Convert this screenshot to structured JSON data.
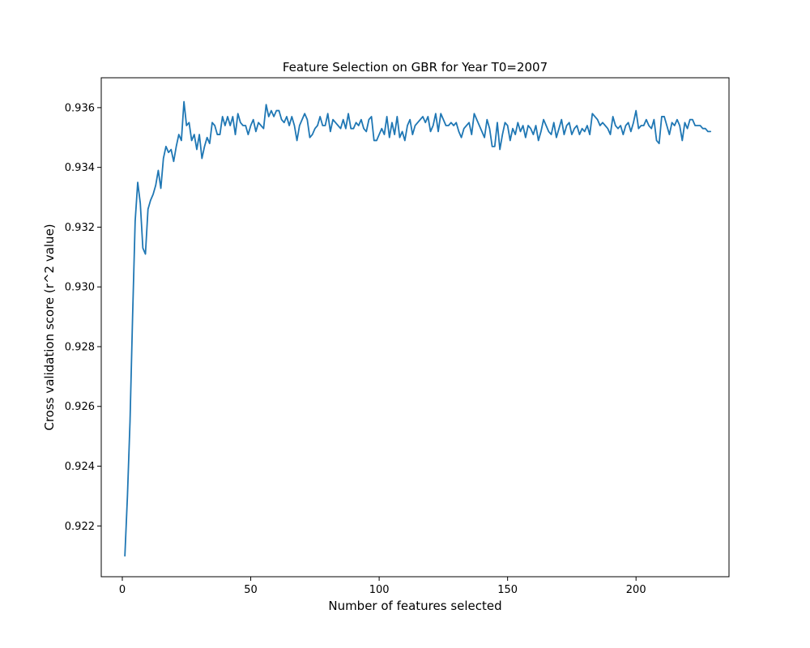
{
  "chart_data": {
    "type": "line",
    "title": "Feature Selection on GBR for Year T0=2007",
    "xlabel": "Number of features selected",
    "ylabel": "Cross validation score (r^2 value)",
    "xlim": [
      -8.2,
      236.2
    ],
    "ylim": [
      0.9203,
      0.937
    ],
    "grid": false,
    "xticks": [
      0,
      50,
      100,
      150,
      200
    ],
    "xtick_labels": [
      "0",
      "50",
      "100",
      "150",
      "200"
    ],
    "yticks": [
      0.922,
      0.924,
      0.926,
      0.928,
      0.93,
      0.932,
      0.934,
      0.936
    ],
    "ytick_labels": [
      "0.922",
      "0.924",
      "0.926",
      "0.928",
      "0.930",
      "0.932",
      "0.934",
      "0.936"
    ],
    "line_color": "#1f77b4",
    "series": [
      {
        "x_start": 1,
        "x_step": 1,
        "values": [
          0.921,
          0.923,
          0.9255,
          0.929,
          0.9322,
          0.9335,
          0.9328,
          0.9313,
          0.9311,
          0.9326,
          0.9329,
          0.9331,
          0.9334,
          0.9339,
          0.9333,
          0.9343,
          0.9347,
          0.9345,
          0.9346,
          0.9342,
          0.9347,
          0.9351,
          0.9349,
          0.9362,
          0.9354,
          0.9355,
          0.9349,
          0.9351,
          0.9346,
          0.9351,
          0.9343,
          0.9347,
          0.935,
          0.9348,
          0.9355,
          0.9354,
          0.9351,
          0.9351,
          0.9357,
          0.9354,
          0.9357,
          0.9354,
          0.9357,
          0.9351,
          0.9358,
          0.9355,
          0.9354,
          0.9354,
          0.9351,
          0.9354,
          0.9356,
          0.9352,
          0.9355,
          0.9354,
          0.9353,
          0.9361,
          0.9357,
          0.9359,
          0.9357,
          0.9359,
          0.9359,
          0.9356,
          0.9355,
          0.9357,
          0.9354,
          0.9357,
          0.9354,
          0.9349,
          0.9354,
          0.9356,
          0.9358,
          0.9356,
          0.935,
          0.9351,
          0.9353,
          0.9354,
          0.9357,
          0.9354,
          0.9354,
          0.9358,
          0.9352,
          0.9356,
          0.9355,
          0.9354,
          0.9353,
          0.9356,
          0.9353,
          0.9358,
          0.9353,
          0.9353,
          0.9355,
          0.9354,
          0.9356,
          0.9353,
          0.9352,
          0.9356,
          0.9357,
          0.9349,
          0.9349,
          0.9351,
          0.9353,
          0.9351,
          0.9357,
          0.935,
          0.9355,
          0.9351,
          0.9357,
          0.935,
          0.9352,
          0.9349,
          0.9354,
          0.9356,
          0.9351,
          0.9354,
          0.9355,
          0.9356,
          0.9357,
          0.9355,
          0.9357,
          0.9352,
          0.9354,
          0.9358,
          0.9352,
          0.9358,
          0.9356,
          0.9354,
          0.9354,
          0.9355,
          0.9354,
          0.9355,
          0.9352,
          0.935,
          0.9353,
          0.9354,
          0.9355,
          0.9351,
          0.9358,
          0.9356,
          0.9354,
          0.9352,
          0.935,
          0.9356,
          0.9353,
          0.9347,
          0.9347,
          0.9355,
          0.9346,
          0.9351,
          0.9355,
          0.9354,
          0.9349,
          0.9353,
          0.9351,
          0.9355,
          0.9352,
          0.9354,
          0.935,
          0.9354,
          0.9353,
          0.9351,
          0.9354,
          0.9349,
          0.9352,
          0.9356,
          0.9354,
          0.9352,
          0.9351,
          0.9355,
          0.935,
          0.9353,
          0.9356,
          0.9351,
          0.9354,
          0.9355,
          0.9351,
          0.9353,
          0.9354,
          0.9351,
          0.9353,
          0.9352,
          0.9354,
          0.9351,
          0.9358,
          0.9357,
          0.9356,
          0.9354,
          0.9355,
          0.9354,
          0.9353,
          0.9351,
          0.9357,
          0.9354,
          0.9353,
          0.9354,
          0.9351,
          0.9354,
          0.9355,
          0.9352,
          0.9355,
          0.9359,
          0.9353,
          0.9354,
          0.9354,
          0.9356,
          0.9354,
          0.9353,
          0.9356,
          0.9349,
          0.9348,
          0.9357,
          0.9357,
          0.9354,
          0.9351,
          0.9355,
          0.9354,
          0.9356,
          0.9354,
          0.9349,
          0.9355,
          0.9353,
          0.9356,
          0.9356,
          0.9354,
          0.9354,
          0.9354,
          0.9353,
          0.9353,
          0.9352,
          0.9352
        ]
      }
    ]
  }
}
